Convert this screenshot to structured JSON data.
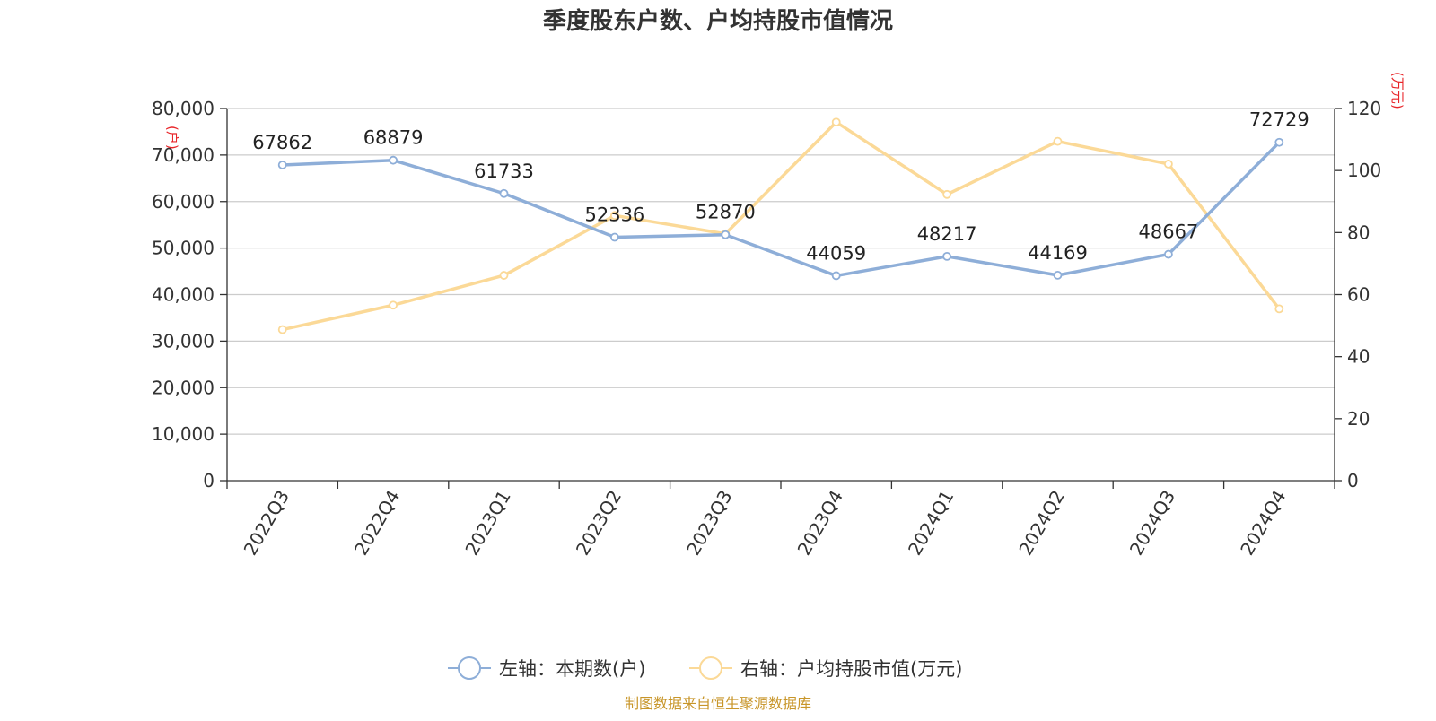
{
  "chart_data": {
    "type": "line",
    "title": "季度股东户数、户均持股市值情况",
    "categories": [
      "2022Q3",
      "2022Q4",
      "2023Q1",
      "2023Q2",
      "2023Q3",
      "2023Q4",
      "2024Q1",
      "2024Q2",
      "2024Q3",
      "2024Q4"
    ],
    "series": [
      {
        "name": "左轴：本期数(户)",
        "axis": "left",
        "color": "#8eaed8",
        "values": [
          67862,
          68879,
          61733,
          52336,
          52870,
          44059,
          48217,
          44169,
          48667,
          72729
        ],
        "show_labels": true
      },
      {
        "name": "右轴：户均持股市值(万元)",
        "axis": "right",
        "color": "#fbd997",
        "values": [
          48.7,
          56.6,
          66.2,
          85.5,
          79.6,
          115.6,
          92.3,
          109.4,
          102.1,
          55.4
        ],
        "show_labels": false
      }
    ],
    "left_axis": {
      "min": 0,
      "max": 80000,
      "ticks": [
        "0",
        "10,000",
        "20,000",
        "30,000",
        "40,000",
        "50,000",
        "60,000",
        "70,000",
        "80,000"
      ],
      "unit": "(户)"
    },
    "right_axis": {
      "min": 0,
      "max": 120,
      "ticks": [
        "0",
        "20",
        "40",
        "60",
        "80",
        "100",
        "120"
      ],
      "unit": "(万元)"
    },
    "grid": true,
    "legend_position": "bottom-center",
    "source": "制图数据来自恒生聚源数据库"
  }
}
